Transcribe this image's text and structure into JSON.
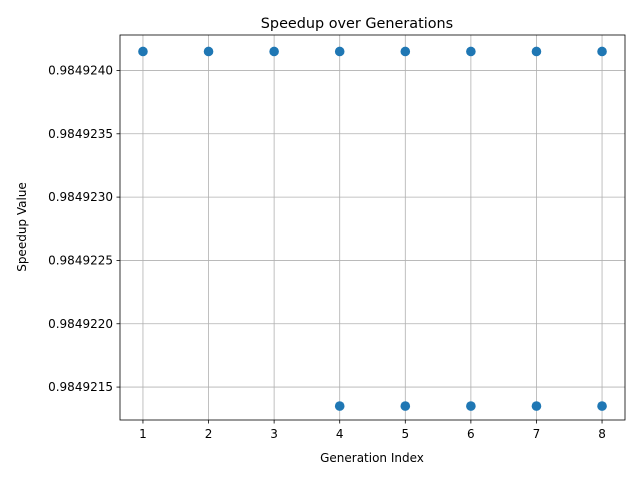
{
  "chart_data": {
    "type": "scatter",
    "title": "Speedup over Generations",
    "xlabel": "Generation Index",
    "ylabel": "Speedup Value",
    "x_ticks": [
      1,
      2,
      3,
      4,
      5,
      6,
      7,
      8
    ],
    "y_ticks": [
      "0.9849215",
      "0.9849220",
      "0.9849225",
      "0.9849230",
      "0.9849235",
      "0.9849240"
    ],
    "xlim": [
      0.65,
      8.35
    ],
    "ylim": [
      0.98492124,
      0.98492428
    ],
    "grid": true,
    "marker_color": "#1f77b4",
    "points": [
      {
        "x": 1,
        "y": 0.98492415
      },
      {
        "x": 2,
        "y": 0.98492415
      },
      {
        "x": 3,
        "y": 0.98492415
      },
      {
        "x": 4,
        "y": 0.98492415
      },
      {
        "x": 5,
        "y": 0.98492415
      },
      {
        "x": 6,
        "y": 0.98492415
      },
      {
        "x": 7,
        "y": 0.98492415
      },
      {
        "x": 8,
        "y": 0.98492415
      },
      {
        "x": 4,
        "y": 0.98492135
      },
      {
        "x": 5,
        "y": 0.98492135
      },
      {
        "x": 6,
        "y": 0.98492135
      },
      {
        "x": 7,
        "y": 0.98492135
      },
      {
        "x": 8,
        "y": 0.98492135
      }
    ]
  }
}
